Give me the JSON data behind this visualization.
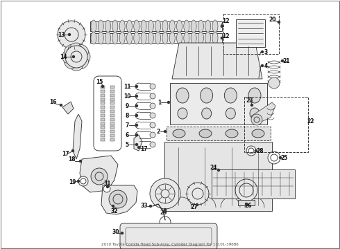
{
  "title": "2010 Toyota Corolla Head Sub-Assy, Cylinder Diagram for 11101-39686",
  "background_color": "#ffffff",
  "line_color": "#333333",
  "text_color": "#111111",
  "fig_width": 4.9,
  "fig_height": 3.6,
  "dpi": 100,
  "label_fontsize": 5.5,
  "lw": 0.65
}
